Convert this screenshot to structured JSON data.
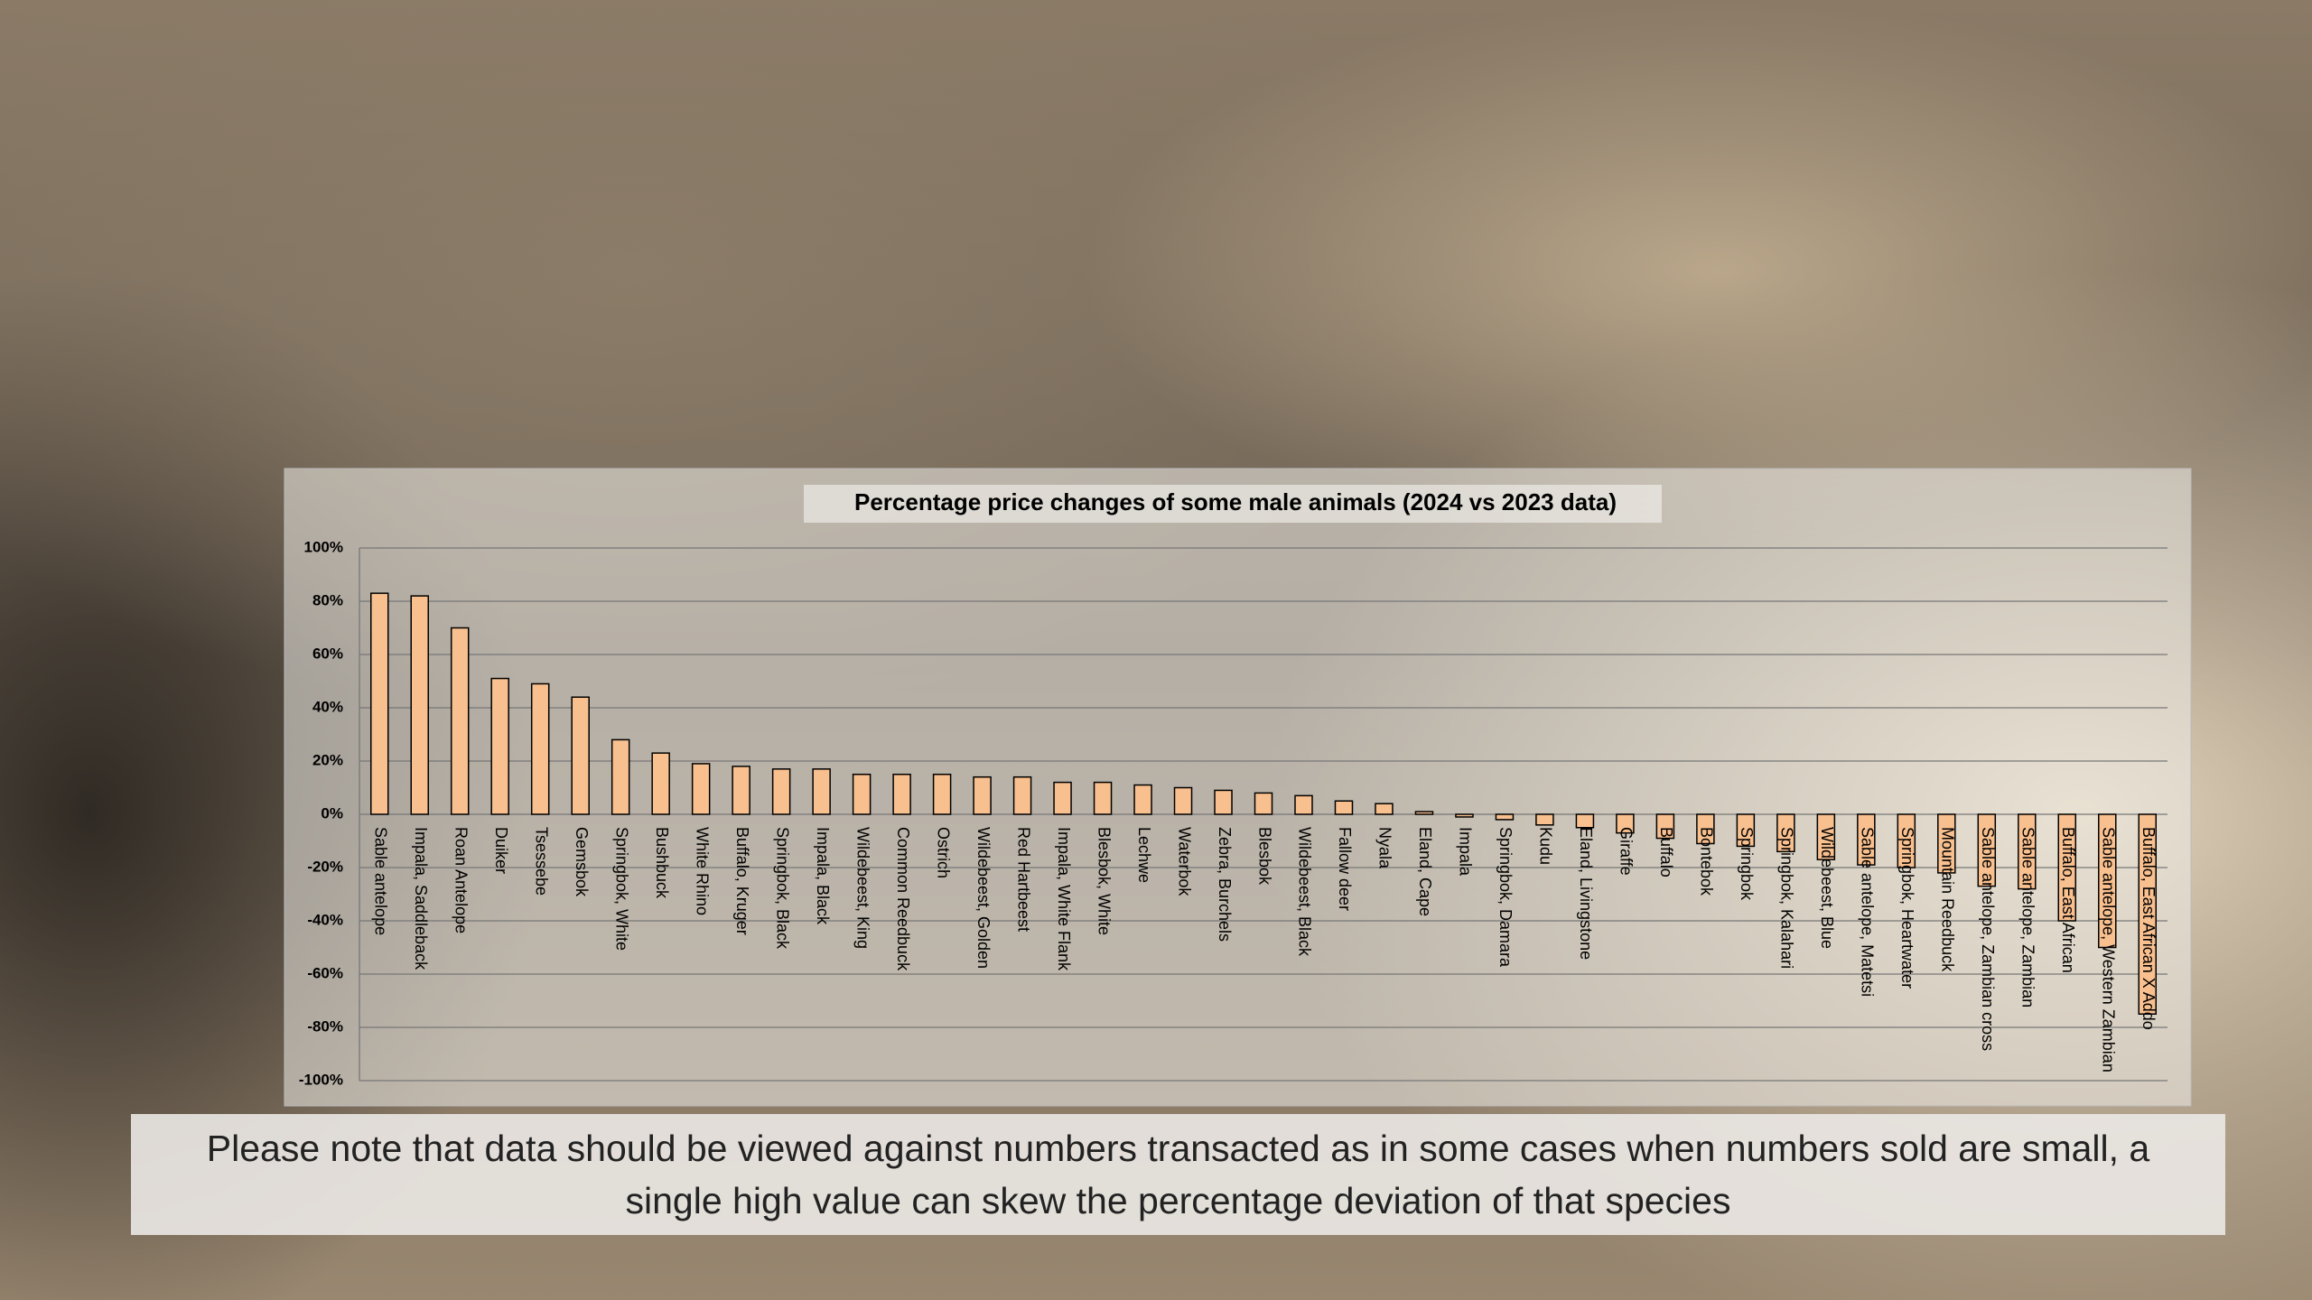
{
  "chart_data": {
    "type": "bar",
    "title": "Percentage price changes of some male animals (2024 vs 2023 data)",
    "categories": [
      "Sable antelope",
      "Impala, Saddleback",
      "Roan Antelope",
      "Duiker",
      "Tsessebe",
      "Gemsbok",
      "Springbok, White",
      "Bushbuck",
      "White Rhino",
      "Buffalo, Kruger",
      "Springbok, Black",
      "Impala, Black",
      "Wildebeest, King",
      "Common Reedbuck",
      "Ostrich",
      "Wildebeest, Golden",
      "Red Hartbeest",
      "Impala, White Flank",
      "Blesbok, White",
      "Lechwe",
      "Waterbok",
      "Zebra, Burchels",
      "Blesbok",
      "Wildebeest, Black",
      "Fallow deer",
      "Nyala",
      "Eland, Cape",
      "Impala",
      "Springbok, Damara",
      "Kudu",
      "Eland, Livingstone",
      "Giraffe",
      "Buffalo",
      "Bontebok",
      "Springbok",
      "Springbok, Kalahari",
      "Wildebeest, Blue",
      "Sable antelope, Matetsi",
      "Springbok, Heartwater",
      "Mountain Reedbuck",
      "Sable antelope, Zambian cross",
      "Sable antelope, Zambian",
      "Buffalo, East African",
      "Sable antelope, Western Zambian",
      "Buffalo, East African X Addo"
    ],
    "values": [
      83,
      82,
      70,
      51,
      49,
      44,
      28,
      23,
      19,
      18,
      17,
      17,
      15,
      15,
      15,
      14,
      14,
      12,
      12,
      11,
      10,
      9,
      8,
      7,
      5,
      4,
      1,
      -1,
      -2,
      -4,
      -5,
      -7,
      -9,
      -11,
      -12,
      -14,
      -17,
      -19,
      -20,
      -22,
      -27,
      -28,
      -40,
      -50,
      -75
    ],
    "color": "#f9c08f",
    "ylim": [
      -100,
      100
    ],
    "yticks": [
      {
        "value": -100,
        "label": "-100%"
      },
      {
        "value": -80,
        "label": "-80%"
      },
      {
        "value": -60,
        "label": "-60%"
      },
      {
        "value": -40,
        "label": "-40%"
      },
      {
        "value": -20,
        "label": "-20%"
      },
      {
        "value": 0,
        "label": "0%"
      },
      {
        "value": 20,
        "label": "20%"
      },
      {
        "value": 40,
        "label": "40%"
      },
      {
        "value": 60,
        "label": "60%"
      },
      {
        "value": 80,
        "label": "80%"
      },
      {
        "value": 100,
        "label": "100%"
      }
    ],
    "grid": true
  },
  "note": "Please note that data should be viewed against numbers transacted as in some cases when numbers sold are small, a single high value can skew the percentage deviation of that species"
}
